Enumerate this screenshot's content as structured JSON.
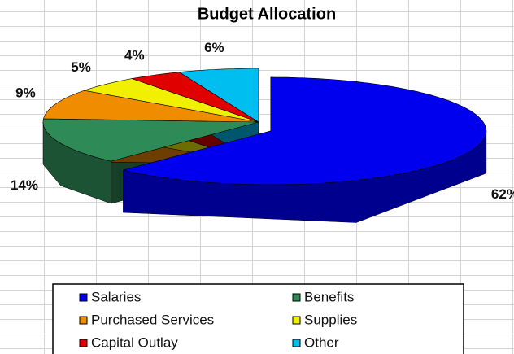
{
  "chart_data": {
    "type": "pie",
    "title": "Budget Allocation",
    "categories": [
      "Salaries",
      "Benefits",
      "Purchased Services",
      "Supplies",
      "Capital Outlay",
      "Other"
    ],
    "values": [
      62,
      14,
      9,
      5,
      4,
      6
    ],
    "value_labels": [
      "62%",
      "14%",
      "9%",
      "5%",
      "4%",
      "6%"
    ],
    "colors": [
      "#0000ee",
      "#2e8b57",
      "#f08c00",
      "#f0f000",
      "#e00000",
      "#00bff0"
    ]
  }
}
